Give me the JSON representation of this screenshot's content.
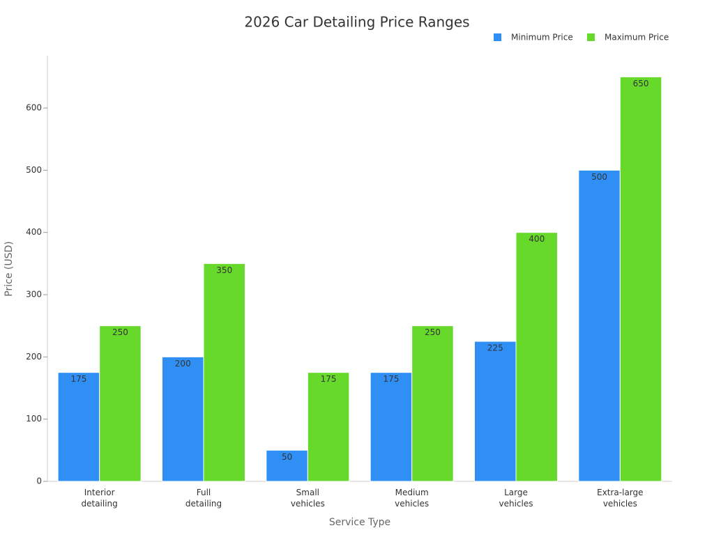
{
  "chart_data": {
    "type": "bar",
    "title": "2026 Car Detailing Price Ranges",
    "x_label": "Service Type",
    "y_label": "Price (USD)",
    "categories": [
      "Interior\ndetailing",
      "Full\ndetailing",
      "Small\nvehicles",
      "Medium\nvehicles",
      "Large\nvehicles",
      "Extra-large\nvehicles"
    ],
    "series": [
      {
        "name": "Minimum Price",
        "color": "#2f8ff5",
        "values": [
          175,
          200,
          50,
          175,
          225,
          500
        ]
      },
      {
        "name": "Maximum Price",
        "color": "#66d92a",
        "values": [
          250,
          350,
          175,
          250,
          400,
          650
        ]
      }
    ],
    "ylim": [
      0,
      684
    ],
    "yticks": [
      0,
      100,
      200,
      300,
      400,
      500,
      600
    ],
    "legend": "top-right"
  }
}
